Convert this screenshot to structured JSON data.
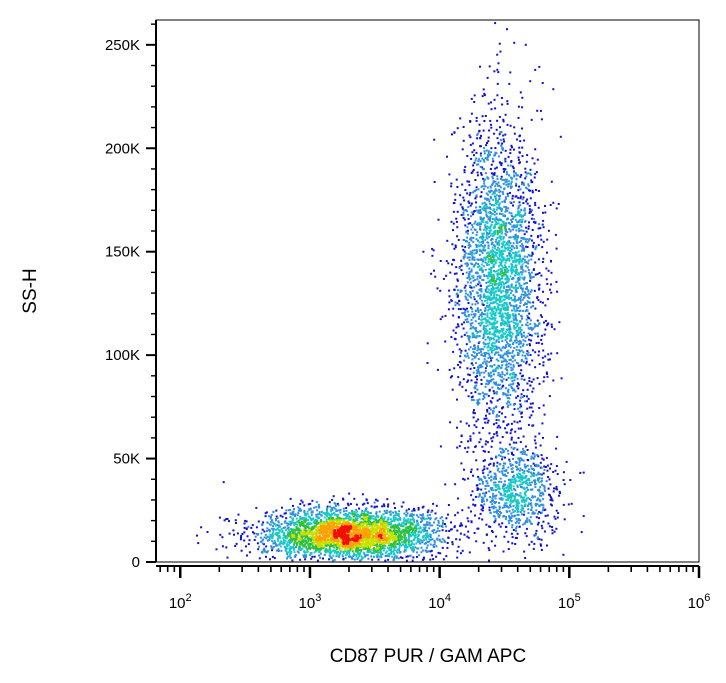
{
  "chart_data": {
    "type": "scatter",
    "subtype": "flow-cytometry-density-dot-plot",
    "title": "",
    "xlabel": "CD87 PUR / GAM APC",
    "ylabel": "SS-H",
    "x_scale": "log",
    "xlim": [
      65,
      1000000
    ],
    "ylim": [
      0,
      262000
    ],
    "x_ticks": [
      {
        "value": 100,
        "base": "10",
        "exp": "2"
      },
      {
        "value": 1000,
        "base": "10",
        "exp": "3"
      },
      {
        "value": 10000,
        "base": "10",
        "exp": "4"
      },
      {
        "value": 100000,
        "base": "10",
        "exp": "5"
      },
      {
        "value": 1000000,
        "base": "10",
        "exp": "6"
      }
    ],
    "y_ticks": [
      {
        "value": 0,
        "label": "0"
      },
      {
        "value": 50000,
        "label": "50K"
      },
      {
        "value": 100000,
        "label": "100K"
      },
      {
        "value": 150000,
        "label": "150K"
      },
      {
        "value": 200000,
        "label": "200K"
      },
      {
        "value": 250000,
        "label": "250K"
      }
    ],
    "populations": [
      {
        "center_x": 2000,
        "center_y": 14000,
        "spread_log10_x": 0.28,
        "spread_y": 5000,
        "events": 3200
      },
      {
        "center_x": 28000,
        "center_y": 135000,
        "spread_log10_x": 0.13,
        "spread_y": 30000,
        "events": 3000
      },
      {
        "center_x": 38000,
        "center_y": 34000,
        "spread_log10_x": 0.14,
        "spread_y": 9000,
        "events": 800
      }
    ],
    "density_colors": [
      "#1010d0",
      "#2f8fe0",
      "#19c8c8",
      "#30c040",
      "#c8e000",
      "#ffa000",
      "#f01000"
    ],
    "grid": false,
    "legend": "none"
  }
}
